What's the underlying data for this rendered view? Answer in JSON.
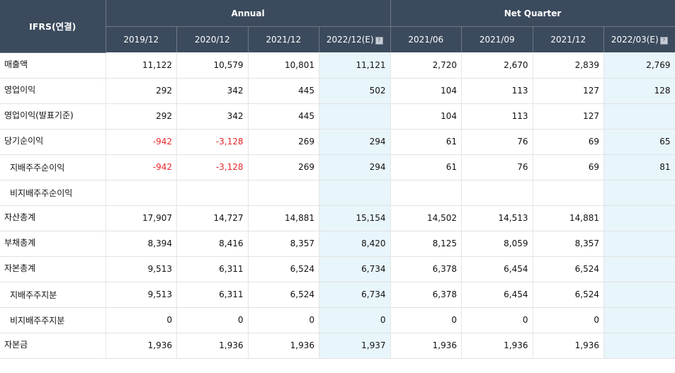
{
  "header": {
    "corner_label": "IFRS(연결)",
    "group_annual": "Annual",
    "group_quarter": "Net Quarter",
    "periods": [
      "2019/12",
      "2020/12",
      "2021/12",
      "2022/12(E)",
      "2021/06",
      "2021/09",
      "2021/12",
      "2022/03(E)"
    ],
    "help_icon": "question-square-icon"
  },
  "rows": [
    {
      "label": "매출액",
      "sub": false,
      "values": [
        "11,122",
        "10,579",
        "10,801",
        "11,121",
        "2,720",
        "2,670",
        "2,839",
        "2,769"
      ]
    },
    {
      "label": "영업이익",
      "sub": false,
      "values": [
        "292",
        "342",
        "445",
        "502",
        "104",
        "113",
        "127",
        "128"
      ]
    },
    {
      "label": "영업이익(발표기준)",
      "sub": false,
      "values": [
        "292",
        "342",
        "445",
        "",
        "104",
        "113",
        "127",
        ""
      ]
    },
    {
      "label": "당기순이익",
      "sub": false,
      "values": [
        "-942",
        "-3,128",
        "269",
        "294",
        "61",
        "76",
        "69",
        "65"
      ]
    },
    {
      "label": "지배주주순이익",
      "sub": true,
      "values": [
        "-942",
        "-3,128",
        "269",
        "294",
        "61",
        "76",
        "69",
        "81"
      ]
    },
    {
      "label": "비지배주주순이익",
      "sub": true,
      "values": [
        "",
        "",
        "",
        "",
        "",
        "",
        "",
        ""
      ]
    },
    {
      "label": "자산총계",
      "sub": false,
      "values": [
        "17,907",
        "14,727",
        "14,881",
        "15,154",
        "14,502",
        "14,513",
        "14,881",
        ""
      ]
    },
    {
      "label": "부채총계",
      "sub": false,
      "values": [
        "8,394",
        "8,416",
        "8,357",
        "8,420",
        "8,125",
        "8,059",
        "8,357",
        ""
      ]
    },
    {
      "label": "자본총계",
      "sub": false,
      "values": [
        "9,513",
        "6,311",
        "6,524",
        "6,734",
        "6,378",
        "6,454",
        "6,524",
        ""
      ]
    },
    {
      "label": "지배주주지분",
      "sub": true,
      "values": [
        "9,513",
        "6,311",
        "6,524",
        "6,734",
        "6,378",
        "6,454",
        "6,524",
        ""
      ]
    },
    {
      "label": "비지배주주지분",
      "sub": true,
      "values": [
        "0",
        "0",
        "0",
        "0",
        "0",
        "0",
        "0",
        ""
      ]
    },
    {
      "label": "자본금",
      "sub": false,
      "values": [
        "1,936",
        "1,936",
        "1,936",
        "1,937",
        "1,936",
        "1,936",
        "1,936",
        ""
      ]
    }
  ],
  "estimate_columns": [
    3,
    7
  ],
  "colors": {
    "header_bg": "#3b4a5d",
    "estimate_bg": "#e8f5fb",
    "negative": "#e8282b"
  }
}
